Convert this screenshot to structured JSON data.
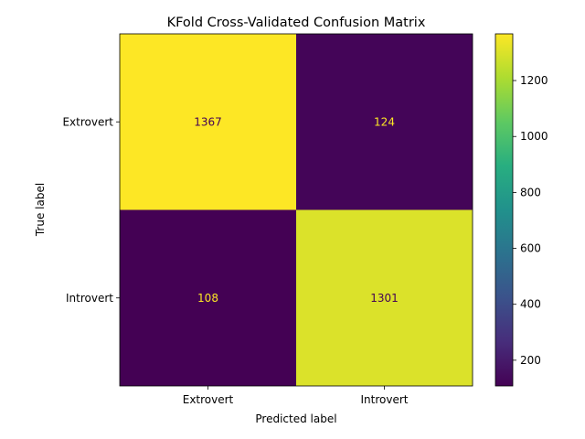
{
  "chart_data": {
    "type": "heatmap",
    "title": "KFold Cross-Validated Confusion Matrix",
    "xlabel": "Predicted label",
    "ylabel": "True label",
    "x_categories": [
      "Extrovert",
      "Introvert"
    ],
    "y_categories": [
      "Extrovert",
      "Introvert"
    ],
    "values": [
      [
        1367,
        124
      ],
      [
        108,
        1301
      ]
    ],
    "colormap": "viridis",
    "colorbar": {
      "min": 108,
      "max": 1367,
      "ticks": [
        200,
        400,
        600,
        800,
        1000,
        1200
      ],
      "tick_labels": [
        "200",
        "400",
        "600",
        "800",
        "1000",
        "1200"
      ]
    },
    "grid": false
  }
}
